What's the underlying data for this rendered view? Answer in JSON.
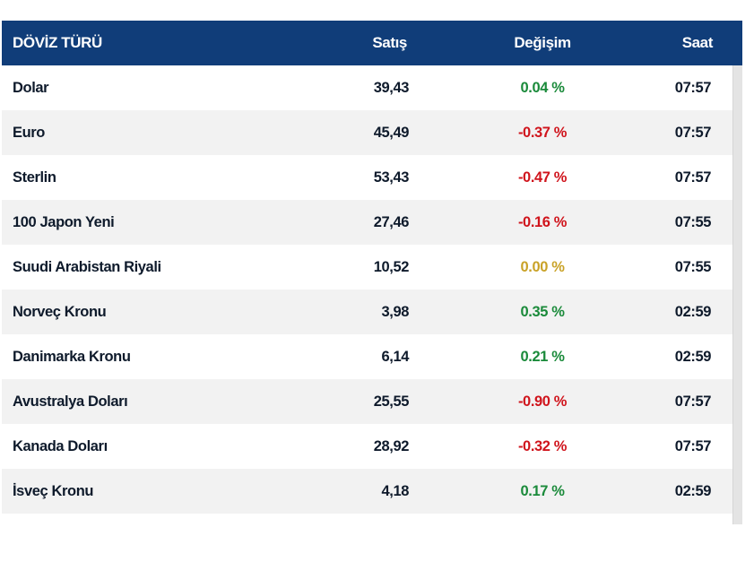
{
  "colors": {
    "header_bg": "#103d79",
    "positive": "#1a8a3a",
    "negative": "#d0141c",
    "neutral": "#c9a227"
  },
  "table": {
    "headers": [
      "DÖVİZ TÜRÜ",
      "Satış",
      "Değişim",
      "Saat"
    ],
    "rows": [
      {
        "name": "Dolar",
        "sell": "39,43",
        "change": "0.04 %",
        "trend": "positive",
        "time": "07:57"
      },
      {
        "name": "Euro",
        "sell": "45,49",
        "change": "-0.37 %",
        "trend": "negative",
        "time": "07:57"
      },
      {
        "name": "Sterlin",
        "sell": "53,43",
        "change": "-0.47 %",
        "trend": "negative",
        "time": "07:57"
      },
      {
        "name": "100 Japon Yeni",
        "sell": "27,46",
        "change": "-0.16 %",
        "trend": "negative",
        "time": "07:55"
      },
      {
        "name": "Suudi Arabistan Riyali",
        "sell": "10,52",
        "change": "0.00 %",
        "trend": "neutral",
        "time": "07:55"
      },
      {
        "name": "Norveç Kronu",
        "sell": "3,98",
        "change": "0.35 %",
        "trend": "positive",
        "time": "02:59"
      },
      {
        "name": "Danimarka Kronu",
        "sell": "6,14",
        "change": "0.21 %",
        "trend": "positive",
        "time": "02:59"
      },
      {
        "name": "Avustralya Doları",
        "sell": "25,55",
        "change": "-0.90 %",
        "trend": "negative",
        "time": "07:57"
      },
      {
        "name": "Kanada Doları",
        "sell": "28,92",
        "change": "-0.32 %",
        "trend": "negative",
        "time": "07:57"
      },
      {
        "name": "İsveç Kronu",
        "sell": "4,18",
        "change": "0.17 %",
        "trend": "positive",
        "time": "02:59"
      }
    ]
  }
}
